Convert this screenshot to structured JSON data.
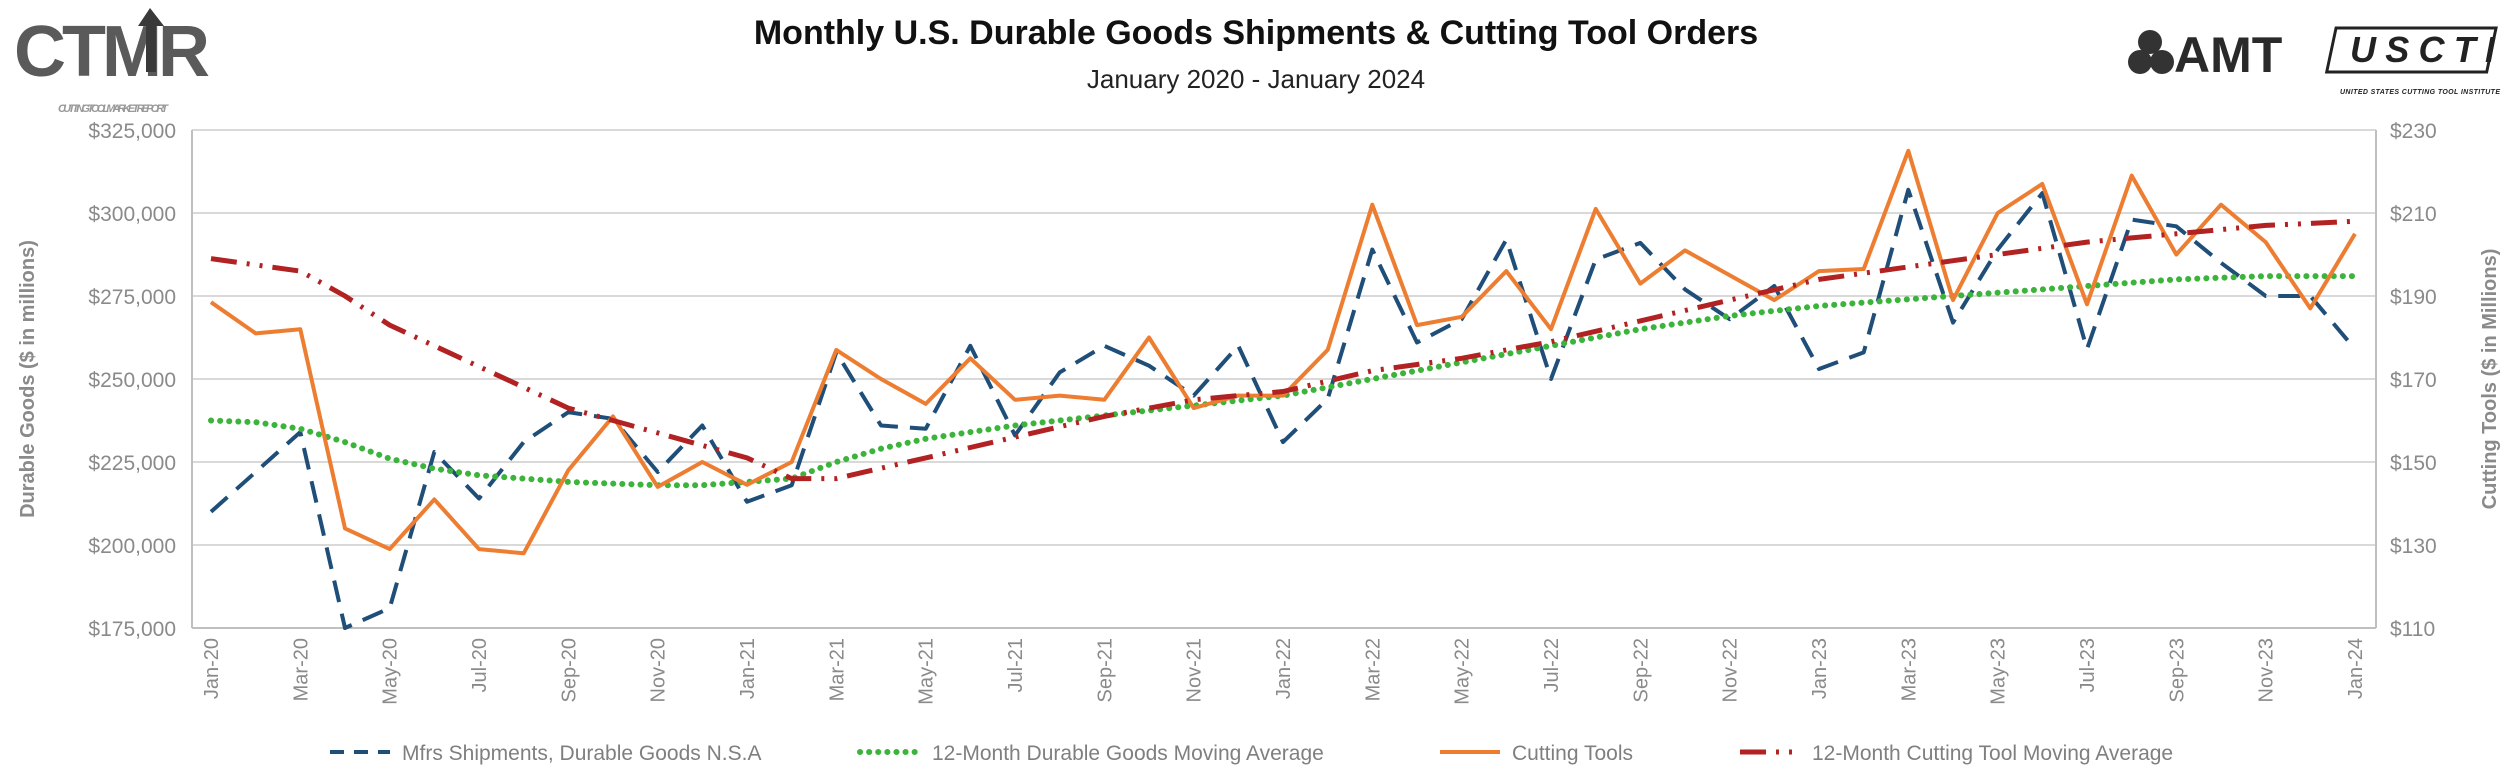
{
  "logos": {
    "left": {
      "name": "CTMR",
      "subtitle": "CUTTING TOOL MARKET REPORT"
    },
    "right": {
      "name": "AMT",
      "second": "USCTI",
      "second_subtitle": "UNITED STATES CUTTING TOOL INSTITUTE"
    }
  },
  "chart_data": {
    "type": "line",
    "title": "Monthly U.S. Durable Goods Shipments & Cutting Tool Orders",
    "subtitle": "January 2020 - January 2024",
    "ylabel": "Durable Goods ($ in millions)",
    "y2label": "Cutting Tools ($ in Millions)",
    "ylim": [
      175000,
      325000
    ],
    "y2lim": [
      110,
      230
    ],
    "yticks": [
      "$175,000",
      "$200,000",
      "$225,000",
      "$250,000",
      "$275,000",
      "$300,000",
      "$325,000"
    ],
    "y2ticks": [
      "$110",
      "$130",
      "$150",
      "$170",
      "$190",
      "$210",
      "$230"
    ],
    "grid": true,
    "legend_position": "bottom",
    "x": [
      "Jan-20",
      "Feb-20",
      "Mar-20",
      "Apr-20",
      "May-20",
      "Jun-20",
      "Jul-20",
      "Aug-20",
      "Sep-20",
      "Oct-20",
      "Nov-20",
      "Dec-20",
      "Jan-21",
      "Feb-21",
      "Mar-21",
      "Apr-21",
      "May-21",
      "Jun-21",
      "Jul-21",
      "Aug-21",
      "Sep-21",
      "Oct-21",
      "Nov-21",
      "Dec-21",
      "Jan-22",
      "Feb-22",
      "Mar-22",
      "Apr-22",
      "May-22",
      "Jun-22",
      "Jul-22",
      "Aug-22",
      "Sep-22",
      "Oct-22",
      "Nov-22",
      "Dec-22",
      "Jan-23",
      "Feb-23",
      "Mar-23",
      "Apr-23",
      "May-23",
      "Jun-23",
      "Jul-23",
      "Aug-23",
      "Sep-23",
      "Oct-23",
      "Nov-23",
      "Dec-23",
      "Jan-24"
    ],
    "xtick_labels": [
      "Jan-20",
      "Mar-20",
      "May-20",
      "Jul-20",
      "Sep-20",
      "Nov-20",
      "Jan-21",
      "Mar-21",
      "May-21",
      "Jul-21",
      "Sep-21",
      "Nov-21",
      "Jan-22",
      "Mar-22",
      "May-22",
      "Jul-22",
      "Sep-22",
      "Nov-22",
      "Jan-23",
      "Mar-23",
      "May-23",
      "Jul-23",
      "Sep-23",
      "Nov-23",
      "Jan-24"
    ],
    "series": [
      {
        "name": "Mfrs Shipments, Durable Goods N.S.A",
        "axis": "left",
        "color": "#1f4e79",
        "style": "dashed",
        "values": [
          210000,
          222000,
          234000,
          173000,
          181000,
          228000,
          214000,
          231000,
          240000,
          238000,
          222000,
          236000,
          213000,
          218000,
          258000,
          236000,
          235000,
          260000,
          233000,
          252000,
          260000,
          254000,
          245000,
          260000,
          231000,
          244000,
          289000,
          261000,
          268000,
          292000,
          250000,
          286000,
          291000,
          277000,
          268000,
          278000,
          253000,
          258000,
          307000,
          267000,
          289000,
          306000,
          259000,
          298000,
          296000,
          285000,
          275000,
          275000,
          259000
        ]
      },
      {
        "name": "12-Month Durable Goods Moving Average",
        "axis": "left",
        "color": "#3cb43c",
        "style": "dotted",
        "values": [
          237500,
          237000,
          235000,
          231000,
          226000,
          223000,
          221000,
          220000,
          219000,
          218500,
          218000,
          218000,
          219000,
          220000,
          225000,
          229000,
          232000,
          234000,
          236000,
          237500,
          239000,
          240500,
          242000,
          243500,
          245000,
          247500,
          250000,
          252500,
          255000,
          257500,
          260000,
          262500,
          265000,
          267000,
          269000,
          270500,
          272000,
          273000,
          274000,
          275000,
          276000,
          277000,
          278000,
          279000,
          280000,
          280500,
          281000,
          281000,
          281000
        ]
      },
      {
        "name": "Cutting Tools",
        "axis": "right",
        "color": "#ed7d31",
        "style": "solid",
        "values": [
          188.5,
          181,
          182,
          134,
          129,
          141,
          129,
          128,
          148,
          161,
          144,
          150,
          144.5,
          150,
          177,
          170,
          164,
          175,
          165,
          166,
          165,
          180,
          163,
          166,
          166,
          177,
          212,
          183,
          185,
          196,
          182,
          211,
          193,
          201,
          195,
          189,
          196,
          196.5,
          225,
          189,
          210,
          217,
          188,
          219,
          200,
          212,
          203,
          187,
          205
        ]
      },
      {
        "name": "12-Month Cutting Tool Moving Average",
        "axis": "right",
        "color": "#b22222",
        "style": "dash-dot-dot",
        "values": [
          199,
          197.5,
          196,
          190,
          183,
          178,
          173,
          168,
          163,
          160,
          157,
          154,
          151,
          146,
          146,
          148.5,
          151,
          153.5,
          156,
          158.5,
          161,
          163,
          165,
          166,
          167,
          169.5,
          172,
          173.5,
          175,
          177,
          179,
          181.5,
          184,
          186.5,
          189,
          191.5,
          194,
          195.5,
          197,
          198.5,
          200,
          201.5,
          203,
          204,
          205,
          206,
          207,
          207.5,
          208
        ]
      }
    ]
  }
}
